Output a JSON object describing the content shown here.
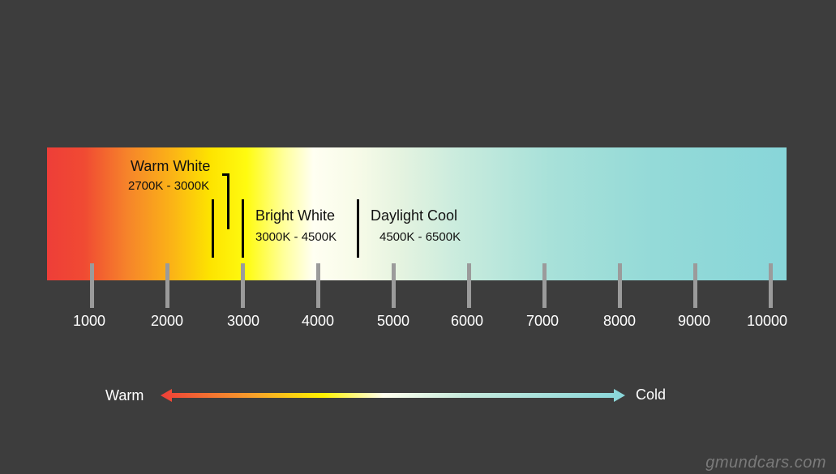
{
  "ranges": {
    "warm_white": {
      "name": "Warm White",
      "range": "2700K - 3000K"
    },
    "bright_white": {
      "name": "Bright White",
      "range": "3000K - 4500K"
    },
    "daylight_cool": {
      "name": "Daylight Cool",
      "range": "4500K - 6500K"
    }
  },
  "scale": {
    "ticks": [
      "1000",
      "2000",
      "3000",
      "4000",
      "5000",
      "6000",
      "7000",
      "8000",
      "9000",
      "10000"
    ]
  },
  "arrow": {
    "left_label": "Warm",
    "right_label": "Cold"
  },
  "colors": {
    "background": "#3d3d3d",
    "warm_end": "#ee3e38",
    "cold_end": "#88d6d9"
  },
  "watermark": "gmundcars.com"
}
